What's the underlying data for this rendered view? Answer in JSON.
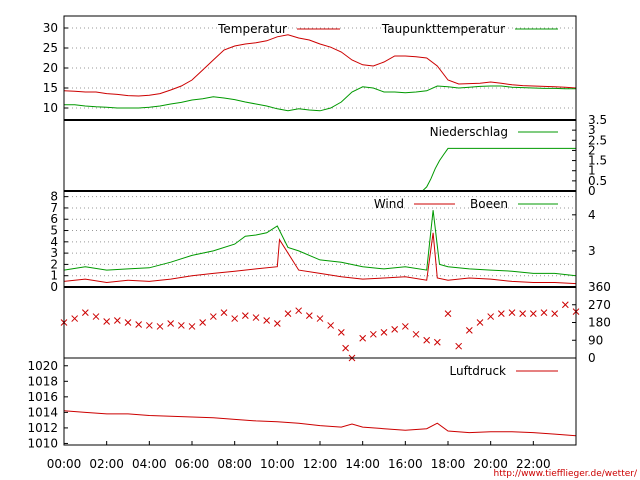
{
  "footer": {
    "url": "http://www.tiefflieger.de/wetter/"
  },
  "chart_data": [
    {
      "name": "temperature",
      "type": "line",
      "ylim": [
        7,
        33
      ],
      "y_ticks": [
        "10",
        "15",
        "20",
        "25",
        "30"
      ],
      "grid": "horizontal-dotted",
      "legend_position": "top",
      "series": [
        {
          "name": "Temperatur",
          "color": "#cc0000",
          "x_hours": [
            0,
            0.5,
            1,
            1.5,
            2,
            2.5,
            3,
            3.5,
            4,
            4.5,
            5,
            5.5,
            6,
            6.5,
            7,
            7.5,
            8,
            8.5,
            9,
            9.5,
            10,
            10.5,
            11,
            11.5,
            12,
            12.5,
            13,
            13.5,
            14,
            14.5,
            15,
            15.5,
            16,
            16.5,
            17,
            17.5,
            18,
            18.5,
            19,
            19.5,
            20,
            20.5,
            21,
            21.5,
            22,
            22.5,
            23,
            23.5,
            24
          ],
          "values": [
            14.3,
            14.2,
            14,
            14,
            13.6,
            13.4,
            13.1,
            13,
            13.2,
            13.6,
            14.5,
            15.5,
            17,
            19.5,
            22,
            24.5,
            25.5,
            26,
            26.3,
            26.8,
            27.8,
            28.3,
            27.5,
            27,
            26,
            25.2,
            24,
            22,
            20.8,
            20.5,
            21.5,
            23,
            23,
            22.8,
            22.5,
            20.5,
            17,
            16,
            16.1,
            16.2,
            16.5,
            16.2,
            15.8,
            15.6,
            15.5,
            15.4,
            15.3,
            15.2,
            15
          ]
        },
        {
          "name": "Taupunkttemperatur",
          "color": "#009900",
          "x_hours": [
            0,
            0.5,
            1,
            1.5,
            2,
            2.5,
            3,
            3.5,
            4,
            4.5,
            5,
            5.5,
            6,
            6.5,
            7,
            7.5,
            8,
            8.5,
            9,
            9.5,
            10,
            10.5,
            11,
            11.5,
            12,
            12.5,
            13,
            13.5,
            14,
            14.5,
            15,
            15.5,
            16,
            16.5,
            17,
            17.5,
            18,
            18.5,
            19,
            19.5,
            20,
            20.5,
            21,
            21.5,
            22,
            22.5,
            23,
            23.5,
            24
          ],
          "values": [
            10.8,
            10.8,
            10.5,
            10.3,
            10.2,
            10,
            10,
            10,
            10.2,
            10.5,
            11,
            11.4,
            12,
            12.3,
            12.8,
            12.5,
            12.1,
            11.5,
            11,
            10.5,
            9.8,
            9.3,
            9.8,
            9.5,
            9.3,
            10,
            11.5,
            14,
            15.3,
            15,
            14,
            14,
            13.8,
            14,
            14.3,
            15.5,
            15.3,
            15,
            15.2,
            15.4,
            15.5,
            15.5,
            15.2,
            15.1,
            15,
            14.9,
            14.9,
            14.8,
            14.8
          ]
        }
      ]
    },
    {
      "name": "precipitation",
      "type": "line",
      "ylim": [
        0,
        3.5
      ],
      "y_ticks_right": [
        "0",
        "0.5",
        "1",
        "1.5",
        "2",
        "2.5",
        "3",
        "3.5"
      ],
      "grid": "off",
      "legend_position": "top-right",
      "series": [
        {
          "name": "Niederschlag",
          "color": "#009900",
          "x_hours": [
            0,
            16.8,
            17,
            17.2,
            17.4,
            17.6,
            17.8,
            18,
            24
          ],
          "values": [
            0,
            0,
            0.2,
            0.6,
            1.1,
            1.5,
            1.8,
            2.1,
            2.1
          ]
        }
      ]
    },
    {
      "name": "wind",
      "type": "line",
      "ylim": [
        0,
        8.5
      ],
      "y_ticks": [
        "0",
        "1",
        "2",
        "3",
        "4",
        "5",
        "6",
        "7",
        "8"
      ],
      "y_ticks_right": [
        "3",
        "4"
      ],
      "grid": "horizontal-dotted",
      "legend_position": "top-right",
      "series": [
        {
          "name": "Wind",
          "color": "#cc0000",
          "x_hours": [
            0,
            1,
            2,
            3,
            4,
            5,
            6,
            7,
            8,
            9,
            10,
            10.1,
            11,
            12,
            13,
            14,
            15,
            16,
            17,
            17.3,
            17.5,
            18,
            19,
            20,
            21,
            22,
            23,
            24
          ],
          "values": [
            0.5,
            0.7,
            0.4,
            0.6,
            0.5,
            0.7,
            1.0,
            1.2,
            1.4,
            1.6,
            1.8,
            4.2,
            1.5,
            1.2,
            0.9,
            0.7,
            0.8,
            0.9,
            0.6,
            4.8,
            0.8,
            0.6,
            0.8,
            0.7,
            0.5,
            0.4,
            0.4,
            0.3
          ]
        },
        {
          "name": "Boeen",
          "color": "#009900",
          "x_hours": [
            0,
            1,
            2,
            3,
            4,
            5,
            6,
            7,
            8,
            8.5,
            9,
            9.5,
            10,
            10.5,
            11,
            12,
            13,
            14,
            15,
            16,
            17,
            17.3,
            17.6,
            18,
            19,
            20,
            21,
            22,
            23,
            24
          ],
          "values": [
            1.5,
            1.8,
            1.5,
            1.6,
            1.7,
            2.2,
            2.8,
            3.2,
            3.8,
            4.5,
            4.6,
            4.8,
            5.4,
            3.5,
            3.2,
            2.4,
            2.2,
            1.8,
            1.6,
            1.8,
            1.5,
            6.8,
            2.0,
            1.8,
            1.6,
            1.5,
            1.4,
            1.2,
            1.2,
            1.0
          ]
        }
      ]
    },
    {
      "name": "wind-direction",
      "type": "scatter",
      "marker": "x",
      "color": "#cc0000",
      "ylim": [
        0,
        360
      ],
      "y_ticks_right": [
        "0",
        "90",
        "180",
        "270",
        "360"
      ],
      "grid": "off",
      "x_hours": [
        0,
        0.5,
        1,
        1.5,
        2,
        2.5,
        3,
        3.5,
        4,
        4.5,
        5,
        5.5,
        6,
        6.5,
        7,
        7.5,
        8,
        8.5,
        9,
        9.5,
        10,
        10.5,
        11,
        11.5,
        12,
        12.5,
        13,
        13.2,
        13.5,
        14,
        14.5,
        15,
        15.5,
        16,
        16.5,
        17,
        17.5,
        18,
        18.5,
        19,
        19.5,
        20,
        20.5,
        21,
        21.5,
        22,
        22.5,
        23,
        23.5,
        24
      ],
      "values": [
        180,
        200,
        230,
        210,
        185,
        190,
        180,
        170,
        165,
        160,
        175,
        165,
        160,
        180,
        210,
        230,
        200,
        215,
        205,
        190,
        175,
        225,
        240,
        215,
        200,
        165,
        130,
        50,
        0,
        100,
        120,
        130,
        145,
        160,
        120,
        90,
        80,
        225,
        60,
        140,
        180,
        210,
        225,
        230,
        225,
        225,
        230,
        225,
        270,
        235
      ]
    },
    {
      "name": "pressure",
      "type": "line",
      "ylim": [
        1009.8,
        1021
      ],
      "y_ticks": [
        "1010",
        "1012",
        "1014",
        "1016",
        "1018",
        "1020"
      ],
      "grid": "off",
      "legend_position": "top-right",
      "series": [
        {
          "name": "Luftdruck",
          "color": "#cc0000",
          "x_hours": [
            0,
            1,
            2,
            3,
            4,
            5,
            6,
            7,
            8,
            9,
            10,
            11,
            12,
            13,
            13.5,
            14,
            15,
            16,
            17,
            17.5,
            18,
            19,
            20,
            21,
            22,
            23,
            24
          ],
          "values": [
            1014.2,
            1014.0,
            1013.8,
            1013.8,
            1013.6,
            1013.5,
            1013.4,
            1013.3,
            1013.1,
            1012.9,
            1012.8,
            1012.6,
            1012.3,
            1012.1,
            1012.5,
            1012.1,
            1011.9,
            1011.7,
            1011.9,
            1012.6,
            1011.6,
            1011.4,
            1011.5,
            1011.5,
            1011.4,
            1011.2,
            1011.0
          ]
        }
      ]
    }
  ],
  "x_axis": {
    "tick_labels": [
      "00:00",
      "02:00",
      "04:00",
      "06:00",
      "08:00",
      "10:00",
      "12:00",
      "14:00",
      "16:00",
      "18:00",
      "20:00",
      "22:00"
    ]
  }
}
